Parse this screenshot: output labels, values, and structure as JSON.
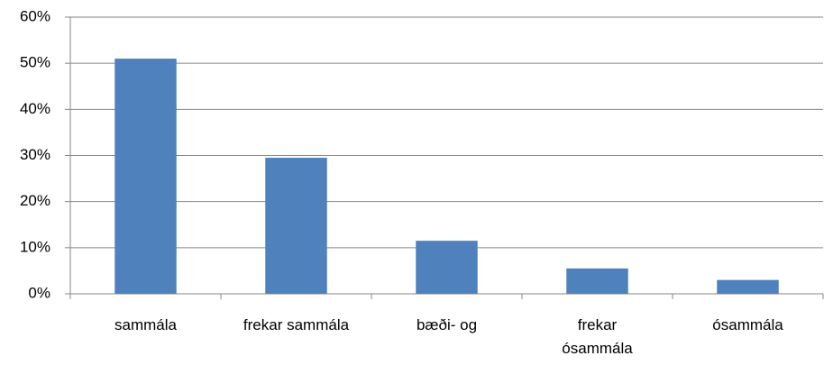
{
  "chart_data": {
    "type": "bar",
    "categories": [
      "sammála",
      "frekar sammála",
      "bæði- og",
      "frekar\nósammála",
      "ósammála"
    ],
    "values": [
      51,
      29.5,
      11.5,
      5.5,
      3
    ],
    "color": "#4f81bd",
    "ylim": [
      0,
      60
    ],
    "yticks": [
      {
        "value": 0,
        "label": "0%"
      },
      {
        "value": 10,
        "label": "10%"
      },
      {
        "value": 20,
        "label": "20%"
      },
      {
        "value": 30,
        "label": "30%"
      },
      {
        "value": 40,
        "label": "40%"
      },
      {
        "value": 50,
        "label": "50%"
      },
      {
        "value": 60,
        "label": "60%"
      }
    ],
    "grid": true
  }
}
